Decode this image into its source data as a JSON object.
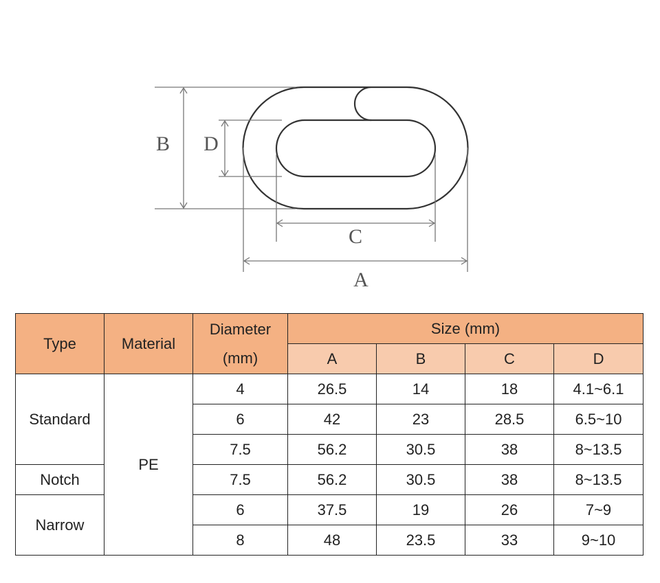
{
  "diagram": {
    "labels": {
      "a": "A",
      "b": "B",
      "c": "C",
      "d": "D"
    }
  },
  "table": {
    "header": {
      "type": "Type",
      "material": "Material",
      "diameter": "Diameter (mm)",
      "size": "Size (mm)"
    },
    "size_columns": [
      "A",
      "B",
      "C",
      "D"
    ],
    "material": "PE",
    "groups": [
      {
        "type": "Standard",
        "rows": [
          [
            "4",
            "26.5",
            "14",
            "18",
            "4.1~6.1"
          ],
          [
            "6",
            "42",
            "23",
            "28.5",
            "6.5~10"
          ],
          [
            "7.5",
            "56.2",
            "30.5",
            "38",
            "8~13.5"
          ]
        ]
      },
      {
        "type": "Notch",
        "rows": [
          [
            "7.5",
            "56.2",
            "30.5",
            "38",
            "8~13.5"
          ]
        ]
      },
      {
        "type": "Narrow",
        "rows": [
          [
            "6",
            "37.5",
            "19",
            "26",
            "7~9"
          ],
          [
            "8",
            "48",
            "23.5",
            "33",
            "9~10"
          ]
        ]
      }
    ]
  }
}
